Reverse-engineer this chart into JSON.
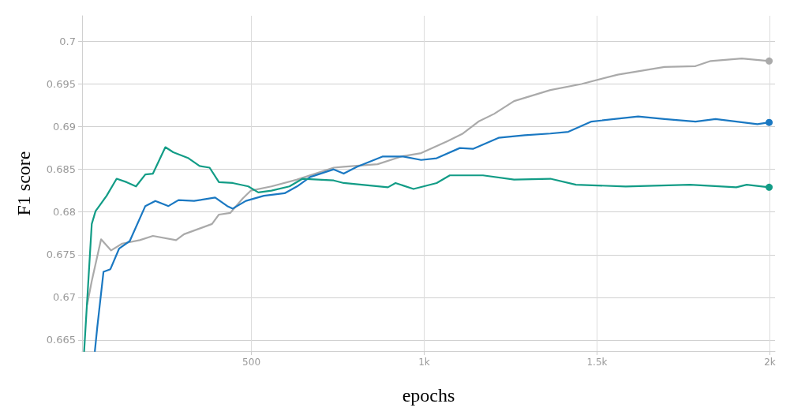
{
  "chart_data": {
    "type": "line",
    "xlabel": "epochs",
    "ylabel": "F1 score",
    "xlim": [
      10,
      2015
    ],
    "ylim": [
      0.6637,
      0.703
    ],
    "xticks": [
      {
        "value": 500,
        "label": "500"
      },
      {
        "value": 1000,
        "label": "1k"
      },
      {
        "value": 1500,
        "label": "1.5k"
      },
      {
        "value": 2000,
        "label": "2k"
      }
    ],
    "yticks": [
      0.665,
      0.67,
      0.675,
      0.68,
      0.685,
      0.69,
      0.695,
      0.7
    ],
    "grid": true,
    "line_style": "solid",
    "series": [
      {
        "color": "#aaaaaa",
        "x": [
          25,
          38,
          65,
          94,
          126,
          177,
          215,
          282,
          305,
          386,
          406,
          439,
          475,
          498,
          558,
          632,
          738,
          767,
          865,
          933,
          991,
          1067,
          1112,
          1157,
          1202,
          1260,
          1365,
          1455,
          1560,
          1695,
          1785,
          1829,
          1919,
          1998
        ],
        "values": [
          0.6692,
          0.6719,
          0.6768,
          0.6755,
          0.6763,
          0.6767,
          0.6772,
          0.6767,
          0.6774,
          0.6786,
          0.6797,
          0.6799,
          0.6816,
          0.6825,
          0.683,
          0.6838,
          0.6852,
          0.6853,
          0.6856,
          0.6865,
          0.6869,
          0.6883,
          0.6892,
          0.6906,
          0.6915,
          0.693,
          0.6943,
          0.695,
          0.6961,
          0.697,
          0.6971,
          0.6977,
          0.698,
          0.6977
        ]
      },
      {
        "color": "#1a78c2",
        "x": [
          47,
          54,
          72,
          92,
          117,
          148,
          193,
          222,
          260,
          289,
          334,
          395,
          430,
          446,
          484,
          536,
          596,
          632,
          670,
          738,
          767,
          805,
          879,
          939,
          991,
          1036,
          1103,
          1141,
          1215,
          1291,
          1365,
          1417,
          1484,
          1619,
          1695,
          1785,
          1843,
          1964,
          1998
        ],
        "values": [
          0.6637,
          0.6665,
          0.673,
          0.6733,
          0.6757,
          0.6766,
          0.6807,
          0.6813,
          0.6807,
          0.6814,
          0.6813,
          0.6817,
          0.6807,
          0.6804,
          0.6813,
          0.6819,
          0.6822,
          0.683,
          0.6841,
          0.685,
          0.6845,
          0.6853,
          0.6865,
          0.6865,
          0.6861,
          0.6863,
          0.6875,
          0.6874,
          0.6887,
          0.689,
          0.6892,
          0.6894,
          0.6906,
          0.6912,
          0.6909,
          0.6906,
          0.6909,
          0.6903,
          0.6905
        ]
      },
      {
        "color": "#129c86",
        "x": [
          16,
          38,
          49,
          81,
          110,
          139,
          166,
          193,
          215,
          251,
          274,
          318,
          350,
          379,
          406,
          446,
          491,
          520,
          558,
          610,
          648,
          693,
          738,
          767,
          895,
          917,
          969,
          1036,
          1074,
          1170,
          1260,
          1365,
          1439,
          1583,
          1769,
          1903,
          1933,
          1998
        ],
        "values": [
          0.6637,
          0.6786,
          0.6801,
          0.6819,
          0.6839,
          0.6835,
          0.683,
          0.6844,
          0.6845,
          0.6876,
          0.687,
          0.6863,
          0.6854,
          0.6852,
          0.6835,
          0.6834,
          0.683,
          0.6823,
          0.6825,
          0.683,
          0.6839,
          0.6838,
          0.6837,
          0.6834,
          0.6829,
          0.6834,
          0.6827,
          0.6834,
          0.6843,
          0.6843,
          0.6838,
          0.6839,
          0.6832,
          0.683,
          0.6832,
          0.6829,
          0.6832,
          0.6829
        ]
      }
    ]
  }
}
